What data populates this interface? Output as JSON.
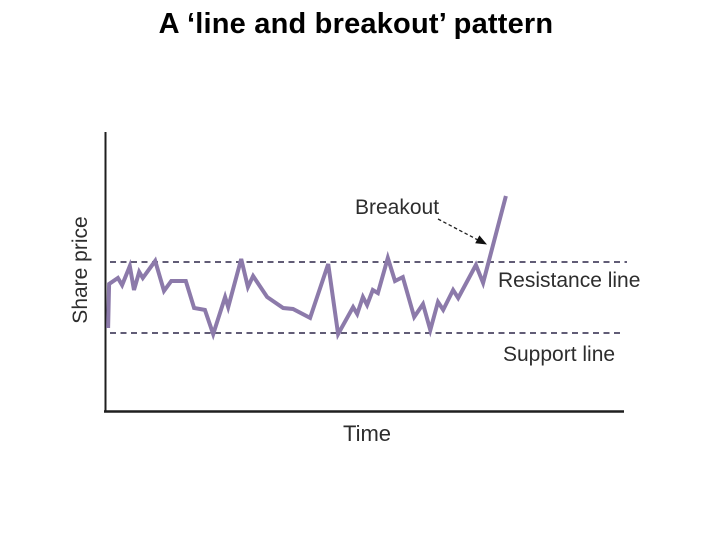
{
  "title": "A ‘line and breakout’ pattern",
  "colors": {
    "background": "#ffffff",
    "price_line": "#8c7aaa",
    "dashed_line": "#4b4663",
    "axis": "#1f1f1f",
    "label_text": "#2d2d2d",
    "title_text": "#000000"
  },
  "chart_data": {
    "type": "line",
    "title": "A ‘line and breakout’ pattern",
    "xlabel": "Time",
    "ylabel": "Share price",
    "x_axis": {
      "label": "Time",
      "ticks": [],
      "numeric": false
    },
    "y_axis": {
      "label": "Share price",
      "ticks": [],
      "numeric": false
    },
    "grid": false,
    "legend": false,
    "support_level": 100,
    "resistance_level": 140,
    "ylim": [
      80,
      185
    ],
    "annotations": {
      "breakout": "Breakout",
      "resistance": "Resistance line",
      "support": "Support line"
    },
    "series": [
      {
        "name": "share-price",
        "points": [
          [
            0.4,
            102.8
          ],
          [
            0.6,
            127.6
          ],
          [
            2.3,
            131.0
          ],
          [
            3.1,
            127.0
          ],
          [
            4.6,
            137.7
          ],
          [
            5.4,
            124.2
          ],
          [
            6.4,
            134.4
          ],
          [
            7.1,
            131.0
          ],
          [
            9.5,
            140.6
          ],
          [
            11.2,
            123.7
          ],
          [
            12.6,
            129.3
          ],
          [
            15.4,
            129.3
          ],
          [
            17.0,
            114.1
          ],
          [
            19.1,
            113.0
          ],
          [
            20.7,
            99.4
          ],
          [
            23.0,
            120.3
          ],
          [
            23.6,
            114.6
          ],
          [
            26.1,
            141.7
          ],
          [
            27.4,
            125.9
          ],
          [
            28.4,
            132.1
          ],
          [
            31.1,
            120.3
          ],
          [
            34.2,
            114.1
          ],
          [
            36.1,
            113.5
          ],
          [
            39.4,
            108.5
          ],
          [
            42.9,
            138.9
          ],
          [
            44.8,
            99.4
          ],
          [
            47.7,
            114.6
          ],
          [
            48.5,
            110.7
          ],
          [
            49.6,
            120.3
          ],
          [
            50.4,
            115.8
          ],
          [
            51.5,
            124.2
          ],
          [
            52.5,
            122.5
          ],
          [
            54.4,
            142.3
          ],
          [
            55.8,
            129.3
          ],
          [
            57.3,
            131.5
          ],
          [
            59.5,
            109.0
          ],
          [
            61.2,
            116.3
          ],
          [
            62.6,
            101.7
          ],
          [
            64.1,
            117.5
          ],
          [
            65.1,
            113.0
          ],
          [
            67.0,
            124.2
          ],
          [
            68.0,
            119.7
          ],
          [
            71.4,
            138.3
          ],
          [
            72.8,
            128.2
          ],
          [
            77.2,
            177.2
          ]
        ]
      }
    ]
  }
}
